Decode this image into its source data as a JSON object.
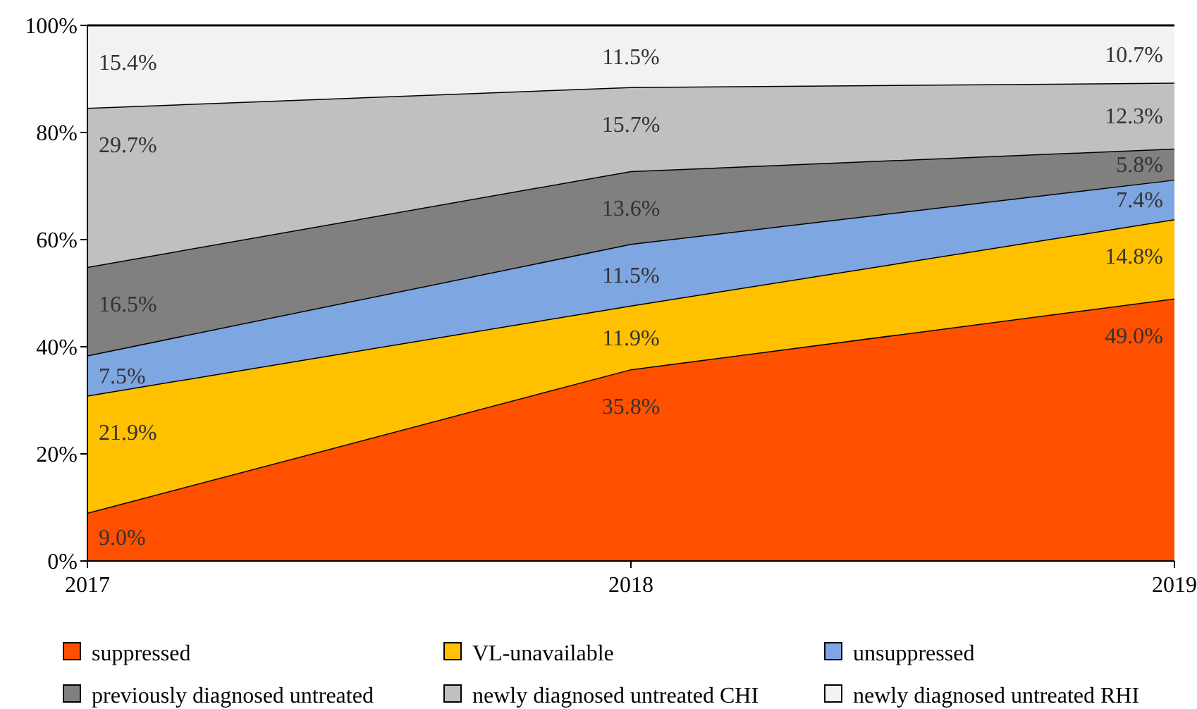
{
  "chart_data": {
    "type": "area",
    "stacked": true,
    "categories": [
      "2017",
      "2018",
      "2019"
    ],
    "ylim": [
      0,
      100
    ],
    "yticks": [
      {
        "value": 0,
        "label": "0%"
      },
      {
        "value": 20,
        "label": "20%"
      },
      {
        "value": 40,
        "label": "40%"
      },
      {
        "value": 60,
        "label": "60%"
      },
      {
        "value": 80,
        "label": "80%"
      },
      {
        "value": 100,
        "label": "100%"
      }
    ],
    "legend": "bottom",
    "series": [
      {
        "name": "suppressed",
        "color": "#ff5000",
        "values": [
          9.0,
          35.8,
          49.0
        ],
        "value_labels": [
          "9.0%",
          "35.8%",
          "49.0%"
        ]
      },
      {
        "name": "VL-unavailable",
        "color": "#ffc000",
        "values": [
          21.9,
          11.9,
          14.8
        ],
        "value_labels": [
          "21.9%",
          "11.9%",
          "14.8%"
        ]
      },
      {
        "name": "unsuppressed",
        "color": "#7ea6e0",
        "values": [
          7.5,
          11.5,
          7.4
        ],
        "value_labels": [
          "7.5%",
          "11.5%",
          "7.4%"
        ]
      },
      {
        "name": "previously diagnosed untreated",
        "color": "#808080",
        "values": [
          16.5,
          13.6,
          5.8
        ],
        "value_labels": [
          "16.5%",
          "13.6%",
          "5.8%"
        ]
      },
      {
        "name": "newly diagnosed untreated CHI",
        "color": "#c0c0c0",
        "values": [
          29.7,
          15.7,
          12.3
        ],
        "value_labels": [
          "29.7%",
          "15.7%",
          "12.3%"
        ]
      },
      {
        "name": "newly diagnosed untreated RHI",
        "color": "#f2f2f2",
        "values": [
          15.4,
          11.5,
          10.7
        ],
        "value_labels": [
          "15.4%",
          "11.5%",
          "10.7%"
        ]
      }
    ]
  }
}
